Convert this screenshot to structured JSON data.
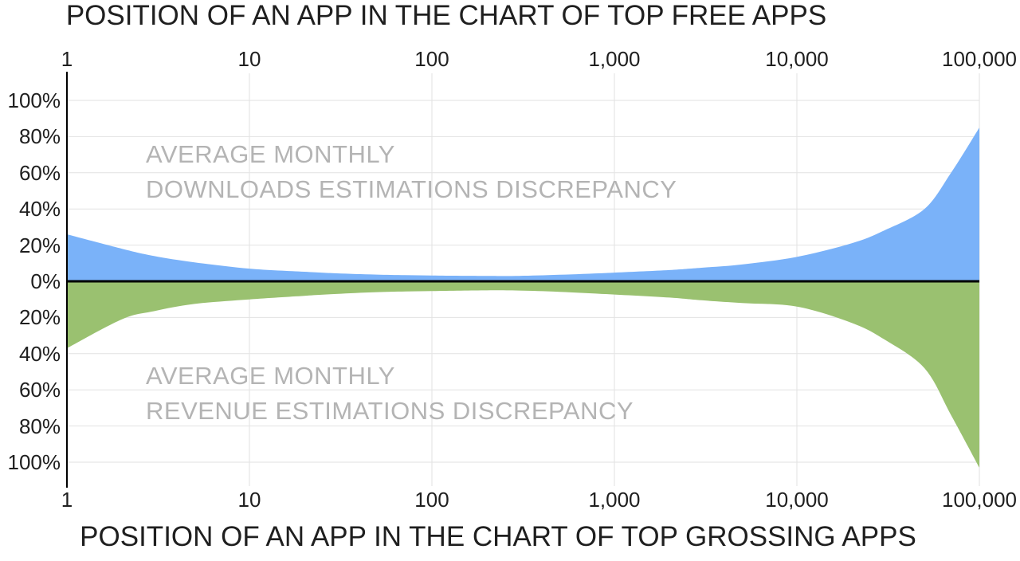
{
  "chart_data": {
    "type": "area",
    "title_top": "POSITION OF AN APP IN THE CHART OF TOP FREE APPS",
    "title_bottom": "POSITION OF AN APP IN THE CHART OF TOP GROSSING APPS",
    "x_axis": {
      "scale": "log",
      "min": 1,
      "max": 100000,
      "tick_values": [
        1,
        10,
        100,
        1000,
        10000,
        100000
      ],
      "tick_labels": [
        "1",
        "10",
        "100",
        "1,000",
        "10,000",
        "100,000"
      ],
      "grid": true
    },
    "y_axis": {
      "unit": "percent",
      "range": [
        -112,
        112
      ],
      "tick_values": [
        100,
        80,
        60,
        40,
        20,
        0,
        -20,
        -40,
        -60,
        -80,
        -100
      ],
      "tick_labels": [
        "100%",
        "80%",
        "60%",
        "40%",
        "20%",
        "0%",
        "20%",
        "40%",
        "60%",
        "80%",
        "100%"
      ],
      "grid": true
    },
    "series": [
      {
        "name": "AVERAGE MONTHLY DOWNLOADS ESTIMATIONS DISCREPANCY",
        "side": "above-zero",
        "color": "#7ab2f9",
        "x": [
          1,
          2,
          3,
          5,
          10,
          20,
          30,
          50,
          100,
          200,
          300,
          500,
          1000,
          2000,
          3000,
          5000,
          10000,
          20000,
          30000,
          50000,
          70000,
          100000
        ],
        "values": [
          26,
          18,
          14,
          10.5,
          7,
          5.3,
          4.4,
          3.7,
          3.2,
          3,
          3,
          3.6,
          4.8,
          6.2,
          7.5,
          9.3,
          13.5,
          21,
          28,
          40,
          60,
          85
        ]
      },
      {
        "name": "AVERAGE MONTHLY REVENUE ESTIMATIONS DISCREPANCY",
        "side": "below-zero",
        "color": "#9ac170",
        "x": [
          1,
          2,
          3,
          5,
          10,
          20,
          30,
          50,
          100,
          200,
          300,
          500,
          1000,
          2000,
          3000,
          5000,
          10000,
          20000,
          30000,
          50000,
          70000,
          100000
        ],
        "values": [
          -37,
          -21,
          -16.5,
          -12.5,
          -10,
          -8,
          -7,
          -6,
          -5.4,
          -5,
          -5.1,
          -5.8,
          -7.3,
          -9,
          -10.5,
          -12,
          -14,
          -23,
          -32,
          -48,
          -74,
          -103
        ]
      }
    ],
    "annotations": [
      {
        "line1": "AVERAGE MONTHLY",
        "line2": "DOWNLOADS ESTIMATIONS DISCREPANCY"
      },
      {
        "line1": "AVERAGE MONTHLY",
        "line2": "REVENUE ESTIMATIONS DISCREPANCY"
      }
    ],
    "legend_position": "none",
    "colors": {
      "downloads_area": "#7ab2f9",
      "revenue_area": "#9ac170",
      "zero_line": "#000000",
      "axis_line": "#000000",
      "grid_line": "#e2e2e2",
      "annotation_text": "#b4b4b4",
      "title_text": "#1f1f1f"
    }
  }
}
